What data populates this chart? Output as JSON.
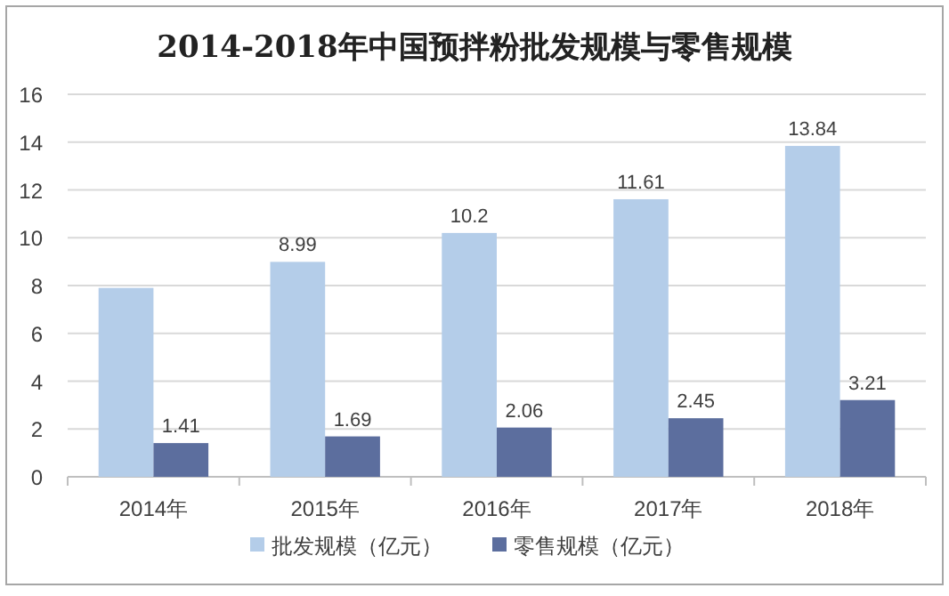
{
  "chart_data": {
    "type": "bar",
    "title": "2014-2018年中国预拌粉批发规模与零售规模",
    "categories": [
      "2014年",
      "2015年",
      "2016年",
      "2017年",
      "2018年"
    ],
    "series": [
      {
        "name": "批发规模（亿元）",
        "color": "#b4cde9",
        "values": [
          7.9,
          8.99,
          10.2,
          11.61,
          13.84
        ],
        "value_labels": [
          null,
          "8.99",
          "10.2",
          "11.61",
          "13.84"
        ]
      },
      {
        "name": "零售规模（亿元）",
        "color": "#5c6e9e",
        "values": [
          1.41,
          1.69,
          2.06,
          2.45,
          3.21
        ],
        "value_labels": [
          "1.41",
          "1.69",
          "2.06",
          "2.45",
          "3.21"
        ]
      }
    ],
    "ylim": [
      0,
      16
    ],
    "yticks": [
      0,
      2,
      4,
      6,
      8,
      10,
      12,
      14,
      16
    ],
    "grid": "y",
    "legend": "bottom"
  }
}
